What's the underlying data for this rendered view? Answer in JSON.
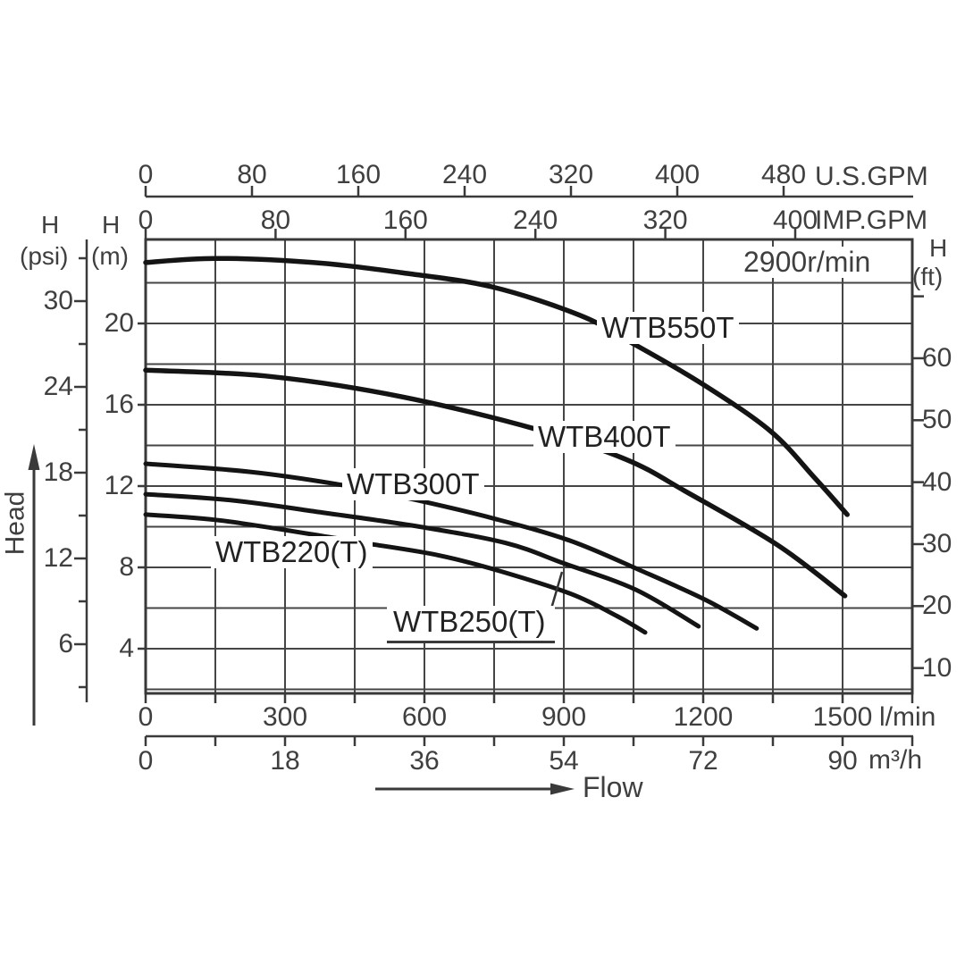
{
  "chart": {
    "annotation": "2900r/min",
    "flow_arrow_label": "Flow",
    "head_arrow_label": "Head",
    "axes": {
      "us_gpm": {
        "unit": "U.S.GPM",
        "ticks": [
          0,
          80,
          160,
          240,
          320,
          400,
          480
        ]
      },
      "imp_gpm": {
        "unit": "IMP.GPM",
        "ticks": [
          0,
          80,
          160,
          240,
          320,
          400
        ]
      },
      "l_min": {
        "unit": "l/min",
        "ticks": [
          0,
          300,
          600,
          900,
          1200,
          1500
        ]
      },
      "m3_h": {
        "unit": "m³/h",
        "ticks": [
          0,
          18,
          36,
          54,
          72,
          90
        ]
      },
      "head_psi": {
        "h": "H",
        "unit": "(psi)",
        "ticks": [
          30,
          24,
          18,
          12,
          6
        ],
        "minor_ticks": [
          33,
          27,
          21,
          15,
          9,
          3
        ]
      },
      "head_m": {
        "h": "H",
        "unit": "(m)",
        "ticks": [
          20,
          16,
          12,
          8,
          4
        ]
      },
      "head_ft": {
        "h": "H",
        "unit": "(ft)",
        "ticks": [
          60,
          50,
          40,
          30,
          20,
          10
        ],
        "unlabeled_tick": 70
      }
    },
    "colors": {
      "line": "#141414",
      "grid": "#454545",
      "text": "#3f3f3f",
      "background": "#ffffff"
    }
  },
  "chart_data": {
    "type": "line",
    "title": "",
    "annotation": "2900r/min",
    "grid": "on",
    "xlabel": "Flow",
    "ylabel": "Head",
    "x_unit": "l/min",
    "y_unit": "m",
    "x_range_l_min": [
      0,
      1650
    ],
    "y_range_m": [
      2,
      24
    ],
    "x_axes_ticks": {
      "US_GPM": [
        0,
        80,
        160,
        240,
        320,
        400,
        480
      ],
      "IMP_GPM": [
        0,
        80,
        160,
        240,
        320,
        400
      ],
      "l_min": [
        0,
        300,
        600,
        900,
        1200,
        1500
      ],
      "m3_h": [
        0,
        18,
        36,
        54,
        72,
        90
      ]
    },
    "y_axes_ticks": {
      "psi": [
        30,
        24,
        18,
        12,
        6
      ],
      "m": [
        20,
        16,
        12,
        8,
        4
      ],
      "ft": [
        60,
        50,
        40,
        30,
        20,
        10
      ]
    },
    "series": [
      {
        "name": "WTB550T",
        "points": [
          [
            0,
            23.0
          ],
          [
            150,
            23.2
          ],
          [
            360,
            23.0
          ],
          [
            550,
            22.5
          ],
          [
            745,
            21.8
          ],
          [
            935,
            20.4
          ],
          [
            1050,
            19.0
          ],
          [
            1200,
            17.0
          ],
          [
            1345,
            14.7
          ],
          [
            1440,
            12.4
          ],
          [
            1510,
            10.6
          ]
        ]
      },
      {
        "name": "WTB400T",
        "points": [
          [
            0,
            17.7
          ],
          [
            265,
            17.4
          ],
          [
            550,
            16.4
          ],
          [
            840,
            14.8
          ],
          [
            1035,
            13.3
          ],
          [
            1165,
            11.7
          ],
          [
            1360,
            9.1
          ],
          [
            1505,
            6.6
          ]
        ]
      },
      {
        "name": "WTB300T",
        "points": [
          [
            0,
            13.1
          ],
          [
            225,
            12.7
          ],
          [
            410,
            12.1
          ],
          [
            565,
            11.4
          ],
          [
            750,
            10.4
          ],
          [
            915,
            9.3
          ],
          [
            1070,
            7.8
          ],
          [
            1205,
            6.4
          ],
          [
            1315,
            5.0
          ]
        ]
      },
      {
        "name": "WTB250(T)",
        "points": [
          [
            0,
            11.6
          ],
          [
            185,
            11.3
          ],
          [
            380,
            10.7
          ],
          [
            590,
            10.0
          ],
          [
            775,
            9.2
          ],
          [
            900,
            8.2
          ],
          [
            1055,
            6.9
          ],
          [
            1190,
            5.1
          ]
        ]
      },
      {
        "name": "WTB220(T)",
        "points": [
          [
            0,
            10.6
          ],
          [
            165,
            10.3
          ],
          [
            405,
            9.45
          ],
          [
            470,
            9.2
          ],
          [
            630,
            8.6
          ],
          [
            765,
            7.8
          ],
          [
            915,
            6.7
          ],
          [
            1015,
            5.6
          ],
          [
            1075,
            4.8
          ]
        ]
      }
    ]
  }
}
